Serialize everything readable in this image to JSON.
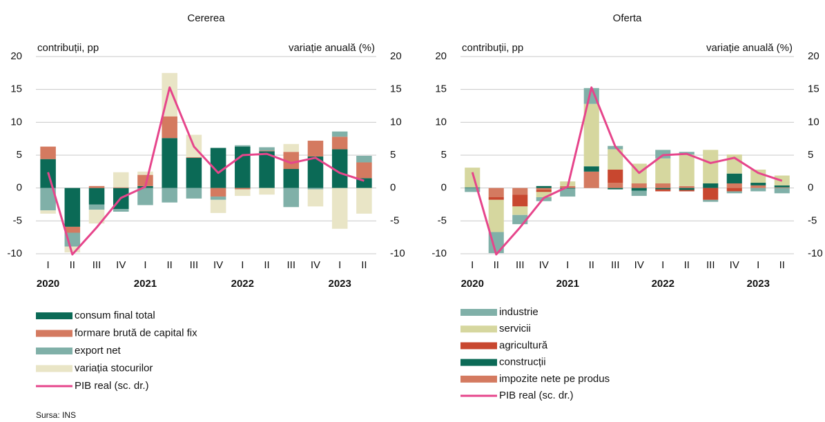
{
  "source": "Sursa: INS",
  "chart_data": [
    {
      "type": "bar",
      "stacked": true,
      "title": "Cererea",
      "y_label": "contribuții, pp",
      "y2_label": "variație anuală (%)",
      "categories": [
        "I",
        "II",
        "III",
        "IV",
        "I",
        "II",
        "III",
        "IV",
        "I",
        "II",
        "III",
        "IV",
        "I",
        "II"
      ],
      "year_labels": [
        "2020",
        null,
        null,
        null,
        "2021",
        null,
        null,
        null,
        "2022",
        null,
        null,
        null,
        "2023",
        null
      ],
      "ylim": [
        -10,
        20
      ],
      "yticks": [
        -10,
        -5,
        0,
        5,
        10,
        15,
        20
      ],
      "y2lim": [
        -10,
        20
      ],
      "y2ticks": [
        -10,
        -5,
        0,
        5,
        10,
        15,
        20
      ],
      "grid": true,
      "series": [
        {
          "name": "consum final total",
          "color": "#0b6a56",
          "values": [
            4.4,
            -5.9,
            -2.5,
            -3.2,
            0.3,
            7.6,
            4.6,
            6.1,
            6.3,
            5.6,
            2.9,
            4.8,
            5.9,
            1.5
          ]
        },
        {
          "name": "formare brută de capital fix",
          "color": "#d47a60",
          "values": [
            1.9,
            -0.9,
            0.3,
            0.1,
            1.7,
            3.3,
            0.1,
            -1.3,
            -0.2,
            0.1,
            2.6,
            2.4,
            1.9,
            2.4
          ]
        },
        {
          "name": "export net",
          "color": "#80b0a8",
          "values": [
            -3.4,
            -2.1,
            -0.8,
            -0.4,
            -2.6,
            -2.2,
            -1.6,
            -0.5,
            0.2,
            0.5,
            -2.9,
            -0.2,
            0.8,
            1.0
          ]
        },
        {
          "name": "variația stocurilor",
          "color": "#e9e5c6",
          "values": [
            -0.5,
            -0.9,
            -2.1,
            2.3,
            0.5,
            6.6,
            3.4,
            -2.0,
            -1.0,
            -1.0,
            1.2,
            -2.6,
            -6.2,
            -3.9
          ]
        },
        {
          "name": "PIB real (sc. dr.)",
          "color": "#e6458b",
          "type": "line",
          "axis": "y2",
          "values": [
            2.4,
            -10.1,
            -6.0,
            -1.5,
            0.2,
            15.3,
            6.3,
            2.3,
            5.0,
            5.2,
            3.8,
            4.6,
            2.3,
            1.1
          ]
        }
      ]
    },
    {
      "type": "bar",
      "stacked": true,
      "title": "Oferta",
      "y_label": "contribuții, pp",
      "y2_label": "variație anuală (%)",
      "categories": [
        "I",
        "II",
        "III",
        "IV",
        "I",
        "II",
        "III",
        "IV",
        "I",
        "II",
        "III",
        "IV",
        "I",
        "II"
      ],
      "year_labels": [
        "2020",
        null,
        null,
        null,
        "2021",
        null,
        null,
        null,
        "2022",
        null,
        null,
        null,
        "2023",
        null
      ],
      "ylim": [
        -10,
        20
      ],
      "yticks": [
        -10,
        -5,
        0,
        5,
        10,
        15,
        20
      ],
      "y2lim": [
        -10,
        20
      ],
      "y2ticks": [
        -10,
        -5,
        0,
        5,
        10,
        15,
        20
      ],
      "grid": true,
      "series": [
        {
          "name": "industrie",
          "color": "#80b0a8",
          "values": [
            -0.6,
            -3.2,
            -1.4,
            -0.6,
            -1.2,
            2.4,
            0.5,
            -0.8,
            1.3,
            0.4,
            -0.3,
            -0.3,
            -0.5,
            -0.8
          ]
        },
        {
          "name": "servicii",
          "color": "#d6d79f",
          "values": [
            3.0,
            -4.9,
            -1.3,
            -0.8,
            0.7,
            9.5,
            3.1,
            3.0,
            3.8,
            4.8,
            5.1,
            2.9,
            2.0,
            1.5
          ]
        },
        {
          "name": "agricultură",
          "color": "#c8472f",
          "values": [
            0,
            -0.4,
            -1.8,
            -0.3,
            0,
            0,
            2.0,
            0,
            -0.3,
            -0.2,
            -1.8,
            -0.5,
            0,
            0
          ]
        },
        {
          "name": "construcții",
          "color": "#0b6a56",
          "values": [
            0.1,
            0,
            0,
            0.3,
            -0.1,
            0.8,
            -0.2,
            -0.4,
            -0.2,
            -0.3,
            0.7,
            1.5,
            0.4,
            0.3
          ]
        },
        {
          "name": "impozite nete pe produs",
          "color": "#d47a60",
          "values": [
            0,
            -1.4,
            -1.0,
            -0.3,
            0.3,
            2.5,
            0.8,
            0.7,
            0.7,
            0.3,
            0,
            0.7,
            0.4,
            0.1
          ]
        },
        {
          "name": "PIB real (sc. dr.)",
          "color": "#e6458b",
          "type": "line",
          "axis": "y2",
          "values": [
            2.4,
            -10.1,
            -6.0,
            -1.5,
            0.2,
            15.3,
            6.3,
            2.3,
            5.0,
            5.2,
            3.8,
            4.6,
            2.3,
            1.1
          ]
        }
      ]
    }
  ]
}
